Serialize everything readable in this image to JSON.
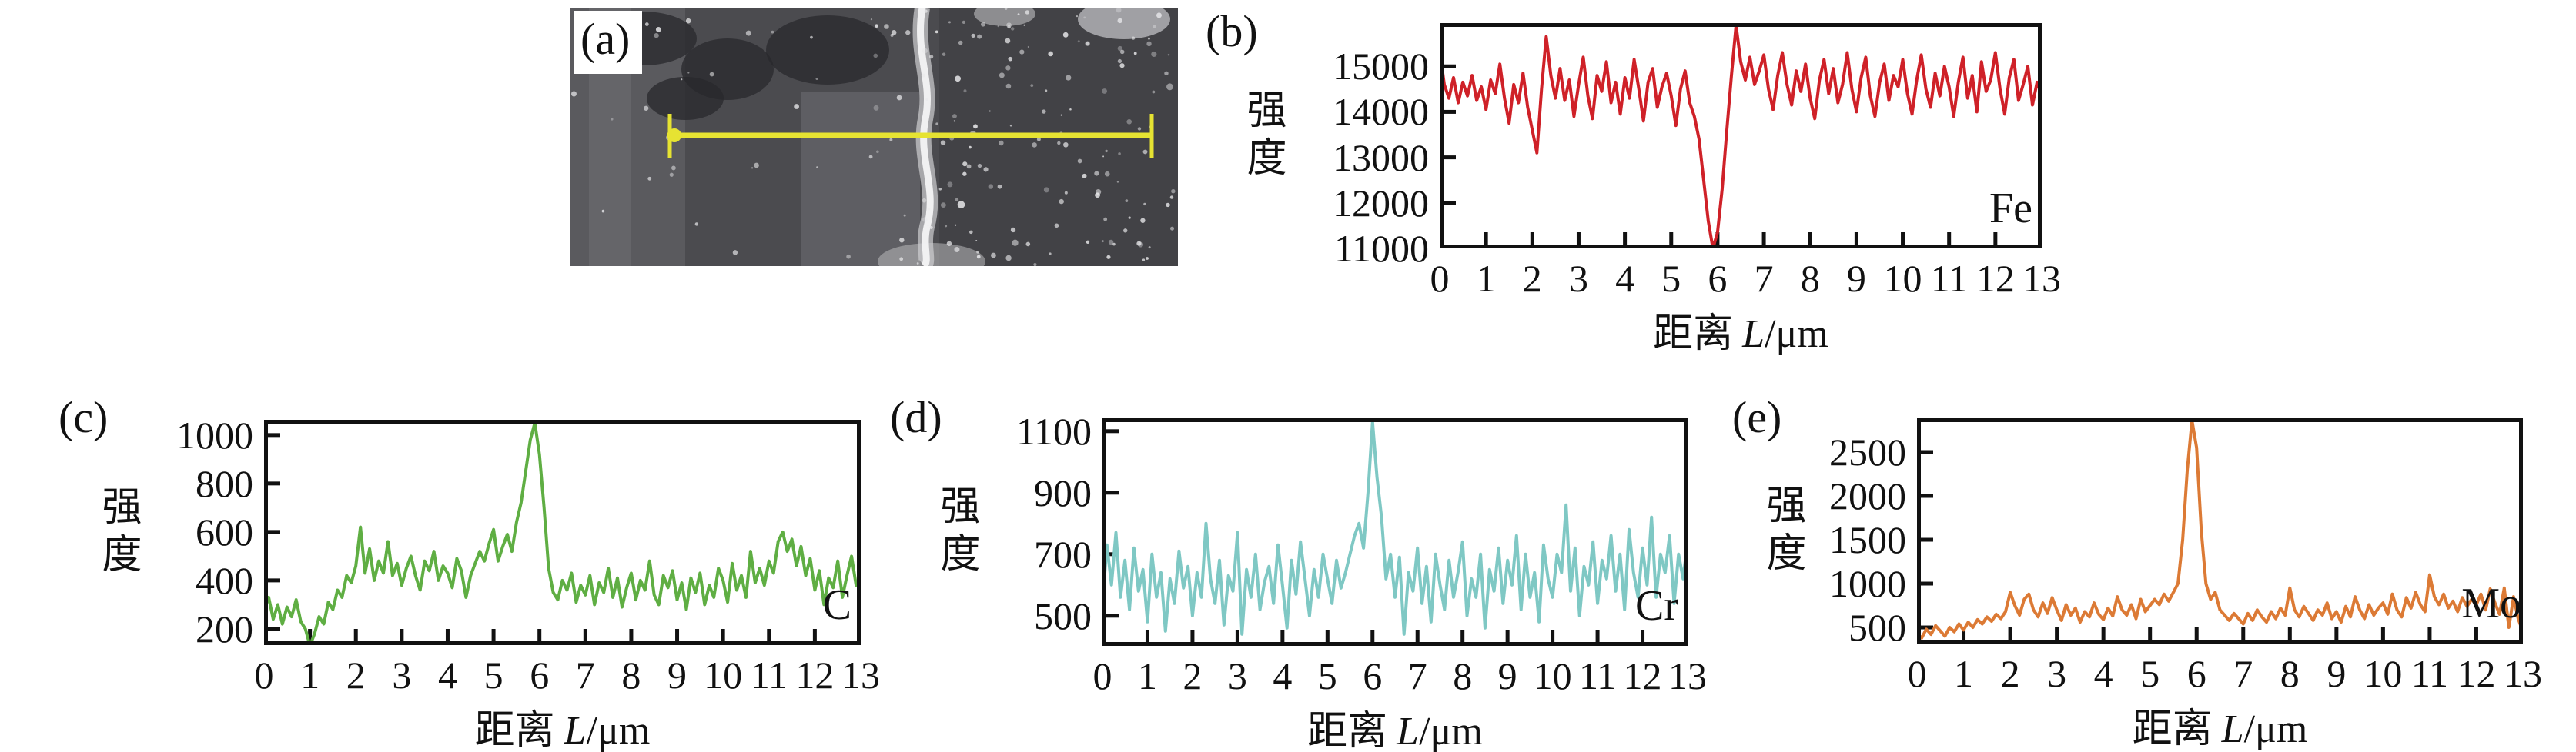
{
  "sem_panel": {
    "panel_label": "(a)",
    "description": "sem-micrograph-with-line-scan",
    "scan_line_color": "#e6e332"
  },
  "chart_data": [
    {
      "type": "line",
      "id": "fe",
      "panel_label": "(b)",
      "element": "Fe",
      "color": "#cf2128",
      "ylabel": "强度",
      "xlabel": {
        "prefix": "距离",
        "var": "L",
        "unit": "/μm"
      },
      "yticks": [
        11000,
        12000,
        13000,
        14000,
        15000
      ],
      "ylim": [
        11000,
        15950
      ],
      "xticks": [
        0,
        1,
        2,
        3,
        4,
        5,
        6,
        7,
        8,
        9,
        10,
        11,
        12,
        13
      ],
      "xlim": [
        0,
        13
      ],
      "x_start": 0,
      "x_step": 0.1,
      "values": [
        15350,
        14600,
        14300,
        14750,
        14200,
        14650,
        14350,
        14800,
        14250,
        14550,
        14050,
        14700,
        14400,
        15050,
        14300,
        13750,
        14600,
        14200,
        14850,
        14100,
        13600,
        13100,
        14500,
        15650,
        14800,
        14300,
        14950,
        14250,
        14700,
        13900,
        14600,
        15200,
        14350,
        13850,
        14800,
        14450,
        15100,
        14200,
        14650,
        13950,
        14750,
        14300,
        15150,
        14500,
        13800,
        14650,
        14950,
        14100,
        14550,
        14850,
        14350,
        13700,
        14500,
        14900,
        14200,
        13900,
        13400,
        12500,
        11600,
        11000,
        11350,
        12300,
        13600,
        14800,
        15900,
        15100,
        14700,
        15200,
        14600,
        14900,
        15250,
        14500,
        14050,
        14800,
        15300,
        14600,
        14150,
        14900,
        14450,
        15050,
        14300,
        13850,
        14700,
        15150,
        14400,
        14950,
        14200,
        14600,
        15300,
        14500,
        14000,
        14750,
        15200,
        14350,
        13900,
        14650,
        15050,
        14250,
        14800,
        14550,
        15150,
        14400,
        13950,
        14700,
        15250,
        14500,
        14100,
        14850,
        14350,
        15000,
        14550,
        13900,
        14650,
        15200,
        14300,
        14800,
        14000,
        15100,
        14450,
        14700,
        15300,
        14500,
        13950,
        14750,
        15150,
        14250,
        14600,
        15000,
        14150,
        14650,
        14400
      ]
    },
    {
      "type": "line",
      "id": "c",
      "panel_label": "(c)",
      "element": "C",
      "color": "#5fae43",
      "ylabel": "强度",
      "xlabel": {
        "prefix": "距离",
        "var": "L",
        "unit": "/μm"
      },
      "yticks": [
        200,
        400,
        600,
        800,
        1000
      ],
      "ylim": [
        133,
        1063
      ],
      "xticks": [
        0,
        1,
        2,
        3,
        4,
        5,
        6,
        7,
        8,
        9,
        10,
        11,
        12,
        13
      ],
      "xlim": [
        0,
        13
      ],
      "x_start": 0,
      "x_step": 0.1,
      "values": [
        280,
        330,
        240,
        300,
        220,
        290,
        250,
        320,
        230,
        200,
        130,
        180,
        250,
        220,
        310,
        280,
        360,
        330,
        420,
        390,
        460,
        620,
        430,
        530,
        400,
        480,
        430,
        560,
        420,
        470,
        380,
        450,
        500,
        420,
        360,
        480,
        440,
        520,
        400,
        460,
        430,
        370,
        490,
        440,
        330,
        420,
        470,
        520,
        480,
        550,
        610,
        480,
        540,
        590,
        520,
        640,
        720,
        850,
        980,
        1050,
        920,
        700,
        450,
        350,
        320,
        400,
        360,
        430,
        310,
        380,
        340,
        420,
        300,
        390,
        350,
        450,
        330,
        410,
        290,
        370,
        430,
        320,
        400,
        360,
        480,
        340,
        300,
        420,
        370,
        440,
        320,
        390,
        280,
        410,
        350,
        430,
        300,
        380,
        330,
        450,
        400,
        310,
        470,
        360,
        420,
        330,
        520,
        390,
        450,
        380,
        480,
        430,
        560,
        600,
        520,
        570,
        460,
        540,
        420,
        490,
        360,
        440,
        300,
        410,
        370,
        480,
        330,
        420,
        500,
        380,
        420
      ]
    },
    {
      "type": "line",
      "id": "cr",
      "panel_label": "(d)",
      "element": "Cr",
      "color": "#7fc8c4",
      "ylabel": "强度",
      "xlabel": {
        "prefix": "距离",
        "var": "L",
        "unit": "/μm"
      },
      "yticks": [
        500,
        700,
        900,
        1100
      ],
      "ylim": [
        402,
        1142
      ],
      "xticks": [
        0,
        1,
        2,
        3,
        4,
        5,
        6,
        7,
        8,
        9,
        10,
        11,
        12,
        13
      ],
      "xlim": [
        0,
        13
      ],
      "x_start": 0,
      "x_step": 0.1,
      "values": [
        540,
        730,
        600,
        770,
        560,
        680,
        520,
        720,
        580,
        650,
        480,
        700,
        560,
        640,
        450,
        620,
        540,
        710,
        590,
        660,
        500,
        640,
        560,
        800,
        620,
        540,
        680,
        470,
        630,
        580,
        770,
        440,
        650,
        560,
        700,
        520,
        610,
        660,
        540,
        730,
        600,
        460,
        680,
        570,
        740,
        620,
        500,
        650,
        560,
        700,
        620,
        540,
        680,
        590,
        640,
        700,
        760,
        800,
        720,
        900,
        1130,
        950,
        820,
        620,
        700,
        560,
        690,
        440,
        640,
        580,
        720,
        540,
        660,
        480,
        700,
        600,
        520,
        680,
        560,
        640,
        740,
        500,
        620,
        560,
        700,
        460,
        650,
        580,
        720,
        540,
        680,
        600,
        760,
        520,
        700,
        560,
        640,
        480,
        730,
        620,
        560,
        700,
        640,
        860,
        580,
        720,
        500,
        660,
        600,
        740,
        540,
        680,
        620,
        760,
        580,
        700,
        520,
        780,
        640,
        560,
        720,
        600,
        820,
        560,
        700,
        640,
        760,
        540,
        700,
        620,
        740
      ]
    },
    {
      "type": "line",
      "id": "mo",
      "panel_label": "(e)",
      "element": "Mo",
      "color": "#dc7a35",
      "ylabel": "强度",
      "xlabel": {
        "prefix": "距离",
        "var": "L",
        "unit": "/μm"
      },
      "yticks": [
        500,
        1000,
        1500,
        2000,
        2500
      ],
      "ylim": [
        316,
        2886
      ],
      "xticks": [
        0,
        1,
        2,
        3,
        4,
        5,
        6,
        7,
        8,
        9,
        10,
        11,
        12,
        13
      ],
      "xlim": [
        0,
        13
      ],
      "x_start": 0,
      "x_step": 0.1,
      "values": [
        430,
        380,
        480,
        420,
        520,
        460,
        400,
        500,
        450,
        540,
        470,
        560,
        500,
        590,
        540,
        620,
        570,
        650,
        600,
        680,
        900,
        750,
        640,
        820,
        880,
        700,
        620,
        780,
        660,
        840,
        700,
        580,
        760,
        640,
        720,
        560,
        680,
        620,
        780,
        650,
        590,
        720,
        630,
        850,
        700,
        640,
        760,
        600,
        820,
        680,
        750,
        820,
        760,
        880,
        800,
        900,
        1000,
        1500,
        2300,
        2860,
        2550,
        1600,
        1000,
        820,
        900,
        700,
        640,
        580,
        660,
        600,
        540,
        660,
        580,
        700,
        620,
        560,
        680,
        600,
        720,
        640,
        950,
        700,
        620,
        740,
        660,
        580,
        700,
        640,
        780,
        600,
        680,
        560,
        740,
        620,
        850,
        700,
        600,
        760,
        640,
        720,
        780,
        650,
        880,
        700,
        620,
        840,
        720,
        900,
        760,
        680,
        1100,
        850,
        760,
        880,
        720,
        800,
        680,
        840,
        740,
        820,
        760,
        880,
        700,
        940,
        780,
        650,
        950,
        500,
        850,
        600,
        450
      ]
    }
  ]
}
